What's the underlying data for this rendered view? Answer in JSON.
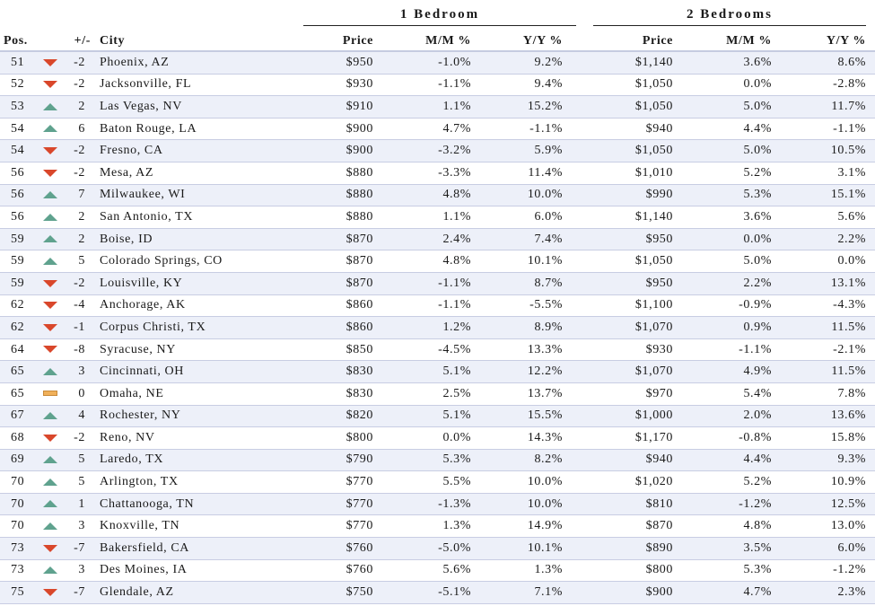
{
  "groups": {
    "one_bedroom": "1 Bedroom",
    "two_bedrooms": "2 Bedrooms"
  },
  "columns": {
    "pos": "Pos.",
    "change": "+/-",
    "city": "City",
    "price1": "Price",
    "mm1": "M/M %",
    "yy1": "Y/Y %",
    "price2": "Price",
    "mm2": "M/M %",
    "yy2": "Y/Y %"
  },
  "colors": {
    "down": "#d9472b",
    "up": "#5fa28e",
    "flat": "#f0b05a",
    "row_stripe": "#edf0f9"
  },
  "rows": [
    {
      "pos": "51",
      "dir": "down",
      "change": "-2",
      "city": "Phoenix, AZ",
      "price1": "$950",
      "mm1": "-1.0%",
      "yy1": "9.2%",
      "price2": "$1,140",
      "mm2": "3.6%",
      "yy2": "8.6%"
    },
    {
      "pos": "52",
      "dir": "down",
      "change": "-2",
      "city": "Jacksonville, FL",
      "price1": "$930",
      "mm1": "-1.1%",
      "yy1": "9.4%",
      "price2": "$1,050",
      "mm2": "0.0%",
      "yy2": "-2.8%"
    },
    {
      "pos": "53",
      "dir": "up",
      "change": "2",
      "city": "Las Vegas, NV",
      "price1": "$910",
      "mm1": "1.1%",
      "yy1": "15.2%",
      "price2": "$1,050",
      "mm2": "5.0%",
      "yy2": "11.7%"
    },
    {
      "pos": "54",
      "dir": "up",
      "change": "6",
      "city": "Baton Rouge, LA",
      "price1": "$900",
      "mm1": "4.7%",
      "yy1": "-1.1%",
      "price2": "$940",
      "mm2": "4.4%",
      "yy2": "-1.1%"
    },
    {
      "pos": "54",
      "dir": "down",
      "change": "-2",
      "city": "Fresno, CA",
      "price1": "$900",
      "mm1": "-3.2%",
      "yy1": "5.9%",
      "price2": "$1,050",
      "mm2": "5.0%",
      "yy2": "10.5%"
    },
    {
      "pos": "56",
      "dir": "down",
      "change": "-2",
      "city": "Mesa, AZ",
      "price1": "$880",
      "mm1": "-3.3%",
      "yy1": "11.4%",
      "price2": "$1,010",
      "mm2": "5.2%",
      "yy2": "3.1%"
    },
    {
      "pos": "56",
      "dir": "up",
      "change": "7",
      "city": "Milwaukee, WI",
      "price1": "$880",
      "mm1": "4.8%",
      "yy1": "10.0%",
      "price2": "$990",
      "mm2": "5.3%",
      "yy2": "15.1%"
    },
    {
      "pos": "56",
      "dir": "up",
      "change": "2",
      "city": "San Antonio, TX",
      "price1": "$880",
      "mm1": "1.1%",
      "yy1": "6.0%",
      "price2": "$1,140",
      "mm2": "3.6%",
      "yy2": "5.6%"
    },
    {
      "pos": "59",
      "dir": "up",
      "change": "2",
      "city": "Boise, ID",
      "price1": "$870",
      "mm1": "2.4%",
      "yy1": "7.4%",
      "price2": "$950",
      "mm2": "0.0%",
      "yy2": "2.2%"
    },
    {
      "pos": "59",
      "dir": "up",
      "change": "5",
      "city": "Colorado Springs, CO",
      "price1": "$870",
      "mm1": "4.8%",
      "yy1": "10.1%",
      "price2": "$1,050",
      "mm2": "5.0%",
      "yy2": "0.0%"
    },
    {
      "pos": "59",
      "dir": "down",
      "change": "-2",
      "city": "Louisville, KY",
      "price1": "$870",
      "mm1": "-1.1%",
      "yy1": "8.7%",
      "price2": "$950",
      "mm2": "2.2%",
      "yy2": "13.1%"
    },
    {
      "pos": "62",
      "dir": "down",
      "change": "-4",
      "city": "Anchorage, AK",
      "price1": "$860",
      "mm1": "-1.1%",
      "yy1": "-5.5%",
      "price2": "$1,100",
      "mm2": "-0.9%",
      "yy2": "-4.3%"
    },
    {
      "pos": "62",
      "dir": "down",
      "change": "-1",
      "city": "Corpus Christi, TX",
      "price1": "$860",
      "mm1": "1.2%",
      "yy1": "8.9%",
      "price2": "$1,070",
      "mm2": "0.9%",
      "yy2": "11.5%"
    },
    {
      "pos": "64",
      "dir": "down",
      "change": "-8",
      "city": "Syracuse, NY",
      "price1": "$850",
      "mm1": "-4.5%",
      "yy1": "13.3%",
      "price2": "$930",
      "mm2": "-1.1%",
      "yy2": "-2.1%"
    },
    {
      "pos": "65",
      "dir": "up",
      "change": "3",
      "city": "Cincinnati, OH",
      "price1": "$830",
      "mm1": "5.1%",
      "yy1": "12.2%",
      "price2": "$1,070",
      "mm2": "4.9%",
      "yy2": "11.5%"
    },
    {
      "pos": "65",
      "dir": "flat",
      "change": "0",
      "city": "Omaha, NE",
      "price1": "$830",
      "mm1": "2.5%",
      "yy1": "13.7%",
      "price2": "$970",
      "mm2": "5.4%",
      "yy2": "7.8%"
    },
    {
      "pos": "67",
      "dir": "up",
      "change": "4",
      "city": "Rochester, NY",
      "price1": "$820",
      "mm1": "5.1%",
      "yy1": "15.5%",
      "price2": "$1,000",
      "mm2": "2.0%",
      "yy2": "13.6%"
    },
    {
      "pos": "68",
      "dir": "down",
      "change": "-2",
      "city": "Reno, NV",
      "price1": "$800",
      "mm1": "0.0%",
      "yy1": "14.3%",
      "price2": "$1,170",
      "mm2": "-0.8%",
      "yy2": "15.8%"
    },
    {
      "pos": "69",
      "dir": "up",
      "change": "5",
      "city": "Laredo, TX",
      "price1": "$790",
      "mm1": "5.3%",
      "yy1": "8.2%",
      "price2": "$940",
      "mm2": "4.4%",
      "yy2": "9.3%"
    },
    {
      "pos": "70",
      "dir": "up",
      "change": "5",
      "city": "Arlington, TX",
      "price1": "$770",
      "mm1": "5.5%",
      "yy1": "10.0%",
      "price2": "$1,020",
      "mm2": "5.2%",
      "yy2": "10.9%"
    },
    {
      "pos": "70",
      "dir": "up",
      "change": "1",
      "city": "Chattanooga, TN",
      "price1": "$770",
      "mm1": "-1.3%",
      "yy1": "10.0%",
      "price2": "$810",
      "mm2": "-1.2%",
      "yy2": "12.5%"
    },
    {
      "pos": "70",
      "dir": "up",
      "change": "3",
      "city": "Knoxville, TN",
      "price1": "$770",
      "mm1": "1.3%",
      "yy1": "14.9%",
      "price2": "$870",
      "mm2": "4.8%",
      "yy2": "13.0%"
    },
    {
      "pos": "73",
      "dir": "down",
      "change": "-7",
      "city": "Bakersfield, CA",
      "price1": "$760",
      "mm1": "-5.0%",
      "yy1": "10.1%",
      "price2": "$890",
      "mm2": "3.5%",
      "yy2": "6.0%"
    },
    {
      "pos": "73",
      "dir": "up",
      "change": "3",
      "city": "Des Moines, IA",
      "price1": "$760",
      "mm1": "5.6%",
      "yy1": "1.3%",
      "price2": "$800",
      "mm2": "5.3%",
      "yy2": "-1.2%"
    },
    {
      "pos": "75",
      "dir": "down",
      "change": "-7",
      "city": "Glendale, AZ",
      "price1": "$750",
      "mm1": "-5.1%",
      "yy1": "7.1%",
      "price2": "$900",
      "mm2": "4.7%",
      "yy2": "2.3%"
    }
  ]
}
